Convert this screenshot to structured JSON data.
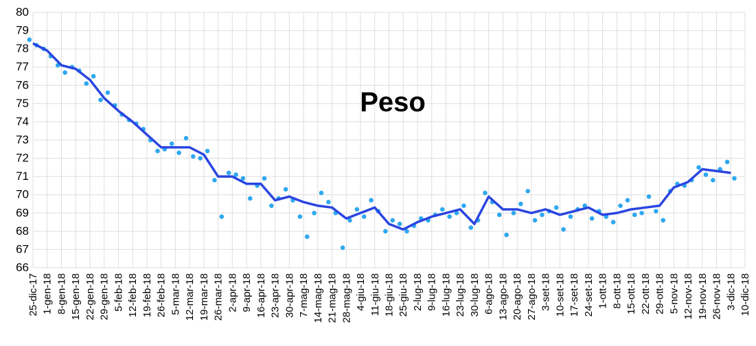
{
  "chart_data": {
    "type": "line",
    "title": "Peso",
    "categories": [
      "25-dic-17",
      "1-gen-18",
      "8-gen-18",
      "15-gen-18",
      "22-gen-18",
      "29-gen-18",
      "5-feb-18",
      "12-feb-18",
      "19-feb-18",
      "26-feb-18",
      "5-mar-18",
      "12-mar-18",
      "19-mar-18",
      "26-mar-18",
      "2-apr-18",
      "9-apr-18",
      "16-apr-18",
      "23-apr-18",
      "30-apr-18",
      "7-mag-18",
      "14-mag-18",
      "21-mag-18",
      "28-mag-18",
      "4-giu-18",
      "11-giu-18",
      "18-giu-18",
      "25-giu-18",
      "2-lug-18",
      "9-lug-18",
      "16-lug-18",
      "23-lug-18",
      "30-lug-18",
      "6-ago-18",
      "13-ago-18",
      "20-ago-18",
      "27-ago-18",
      "3-set-18",
      "10-set-18",
      "17-set-18",
      "24-set-18",
      "1-ott-18",
      "8-ott-18",
      "15-ott-18",
      "22-ott-18",
      "29-ott-18",
      "5-nov-18",
      "12-nov-18",
      "19-nov-18",
      "26-nov-18",
      "3-dic-18",
      "10-dic-18"
    ],
    "series": [
      {
        "type": "line",
        "color": "#2a45e0",
        "values": [
          78.3,
          77.9,
          77.1,
          76.9,
          76.3,
          75.3,
          74.6,
          74.0,
          73.3,
          72.6,
          72.6,
          72.6,
          72.2,
          71.0,
          71.0,
          70.6,
          70.6,
          69.7,
          69.9,
          69.6,
          69.4,
          69.3,
          68.7,
          69.0,
          69.3,
          68.4,
          68.1,
          68.5,
          68.8,
          69.0,
          69.2,
          68.4,
          69.9,
          69.2,
          69.2,
          69.0,
          69.2,
          68.9,
          69.1,
          69.3,
          68.9,
          69.0,
          69.2,
          69.3,
          69.4,
          70.4,
          70.7,
          71.4,
          71.3,
          71.2,
          null
        ]
      },
      {
        "type": "scatter",
        "color": "#2fa8ee",
        "values": [
          78.5,
          78.0,
          77.1,
          77.0,
          76.1,
          75.2,
          74.9,
          74.1,
          73.6,
          72.4,
          72.8,
          73.1,
          72.0,
          70.8,
          71.2,
          70.9,
          70.5,
          69.4,
          70.3,
          68.8,
          69.0,
          69.6,
          67.1,
          69.2,
          69.7,
          68.0,
          68.4,
          68.3,
          68.6,
          69.2,
          69.0,
          68.2,
          70.1,
          68.9,
          69.0,
          70.2,
          68.9,
          69.3,
          68.8,
          69.4,
          69.1,
          68.5,
          69.7,
          69.0,
          69.1,
          70.2,
          70.5,
          71.5,
          70.8,
          71.8,
          null
        ]
      },
      {
        "type": "scatter",
        "color": "#2fa8ee",
        "values": [
          78.2,
          77.6,
          76.7,
          76.8,
          76.5,
          75.6,
          74.4,
          73.9,
          73.0,
          72.5,
          72.3,
          72.1,
          72.4,
          68.8,
          71.1,
          69.8,
          70.9,
          69.8,
          69.7,
          67.7,
          70.1,
          69.0,
          68.6,
          68.8,
          69.1,
          68.6,
          68.0,
          68.7,
          68.9,
          68.8,
          69.4,
          68.6,
          69.6,
          67.8,
          69.5,
          68.6,
          69.1,
          68.1,
          69.2,
          68.7,
          68.8,
          69.4,
          68.9,
          69.9,
          68.6,
          70.6,
          70.8,
          71.1,
          71.4,
          70.9,
          null
        ]
      }
    ],
    "ylim": [
      66,
      80
    ],
    "yticks": [
      66,
      67,
      68,
      69,
      70,
      71,
      72,
      73,
      74,
      75,
      76,
      77,
      78,
      79,
      80
    ],
    "grid": true
  }
}
